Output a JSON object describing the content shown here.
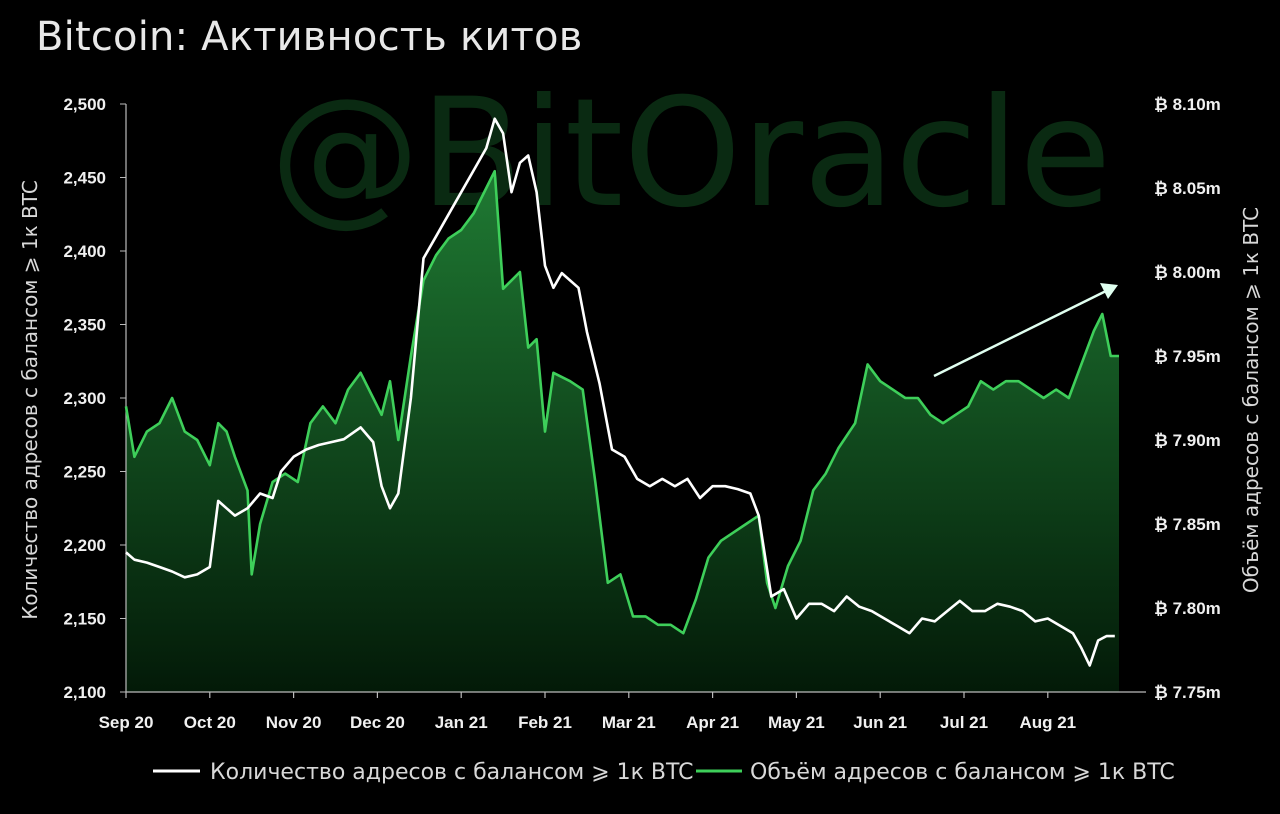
{
  "chart_data": {
    "type": "line",
    "title": "Bitcoin: Активность китов",
    "watermark": "@BitOracle",
    "x": [
      "Sep 20",
      "Oct 20",
      "Nov 20",
      "Dec 20",
      "Jan 21",
      "Feb 21",
      "Mar 21",
      "Apr 21",
      "May 21",
      "Jun 21",
      "Jul 21",
      "Aug 21"
    ],
    "left_axis": {
      "label": "Количество адресов с балансом ⩾ 1к BTC",
      "ticks": [
        "2,500",
        "2,450",
        "2,400",
        "2,350",
        "2,300",
        "2,250",
        "2,200",
        "2,150",
        "2,100"
      ],
      "ylim": [
        2100,
        2500
      ]
    },
    "right_axis": {
      "label": "Объём адресов с балансом ⩾ 1к BTC",
      "ticks": [
        "₿ 8.10m",
        "₿ 8.05m",
        "₿ 8.00m",
        "₿ 7.95m",
        "₿ 7.90m",
        "₿ 7.85m",
        "₿ 7.80m",
        "₿ 7.75m"
      ],
      "ylim": [
        7.75,
        8.1
      ]
    },
    "series": [
      {
        "name": "Количество адресов с балансом ⩾ 1к BTC",
        "axis": "left",
        "color": "#ffffff",
        "points": [
          [
            0,
            2195
          ],
          [
            0.1,
            2190
          ],
          [
            0.25,
            2188
          ],
          [
            0.4,
            2185
          ],
          [
            0.55,
            2182
          ],
          [
            0.7,
            2178
          ],
          [
            0.85,
            2180
          ],
          [
            1.0,
            2185
          ],
          [
            1.1,
            2230
          ],
          [
            1.2,
            2225
          ],
          [
            1.3,
            2220
          ],
          [
            1.45,
            2225
          ],
          [
            1.6,
            2235
          ],
          [
            1.75,
            2232
          ],
          [
            1.85,
            2250
          ],
          [
            2.0,
            2260
          ],
          [
            2.15,
            2265
          ],
          [
            2.3,
            2268
          ],
          [
            2.45,
            2270
          ],
          [
            2.6,
            2272
          ],
          [
            2.8,
            2280
          ],
          [
            2.95,
            2270
          ],
          [
            3.05,
            2240
          ],
          [
            3.15,
            2225
          ],
          [
            3.25,
            2235
          ],
          [
            3.4,
            2300
          ],
          [
            3.55,
            2395
          ],
          [
            3.7,
            2410
          ],
          [
            3.85,
            2425
          ],
          [
            4.0,
            2440
          ],
          [
            4.15,
            2455
          ],
          [
            4.3,
            2470
          ],
          [
            4.4,
            2490
          ],
          [
            4.5,
            2480
          ],
          [
            4.6,
            2440
          ],
          [
            4.7,
            2460
          ],
          [
            4.8,
            2465
          ],
          [
            4.9,
            2440
          ],
          [
            5.0,
            2390
          ],
          [
            5.1,
            2375
          ],
          [
            5.2,
            2385
          ],
          [
            5.4,
            2375
          ],
          [
            5.5,
            2345
          ],
          [
            5.65,
            2310
          ],
          [
            5.8,
            2265
          ],
          [
            5.95,
            2260
          ],
          [
            6.1,
            2245
          ],
          [
            6.25,
            2240
          ],
          [
            6.4,
            2245
          ],
          [
            6.55,
            2240
          ],
          [
            6.7,
            2245
          ],
          [
            6.85,
            2232
          ],
          [
            7.0,
            2240
          ],
          [
            7.15,
            2240
          ],
          [
            7.3,
            2238
          ],
          [
            7.45,
            2235
          ],
          [
            7.55,
            2220
          ],
          [
            7.7,
            2165
          ],
          [
            7.85,
            2170
          ],
          [
            8.0,
            2150
          ],
          [
            8.15,
            2160
          ],
          [
            8.3,
            2160
          ],
          [
            8.45,
            2155
          ],
          [
            8.6,
            2165
          ],
          [
            8.75,
            2158
          ],
          [
            8.9,
            2155
          ],
          [
            9.05,
            2150
          ],
          [
            9.2,
            2145
          ],
          [
            9.35,
            2140
          ],
          [
            9.5,
            2150
          ],
          [
            9.65,
            2148
          ],
          [
            9.8,
            2155
          ],
          [
            9.95,
            2162
          ],
          [
            10.1,
            2155
          ],
          [
            10.25,
            2155
          ],
          [
            10.4,
            2160
          ],
          [
            10.55,
            2158
          ],
          [
            10.7,
            2155
          ],
          [
            10.85,
            2148
          ],
          [
            11.0,
            2150
          ],
          [
            11.15,
            2145
          ],
          [
            11.3,
            2140
          ],
          [
            11.4,
            2130
          ],
          [
            11.5,
            2118
          ],
          [
            11.6,
            2135
          ],
          [
            11.7,
            2138
          ],
          [
            11.8,
            2138
          ]
        ]
      },
      {
        "name": "Объём адресов с балансом ⩾ 1к BTC",
        "axis": "right",
        "color": "#3ecf5a",
        "points": [
          [
            0,
            7.92
          ],
          [
            0.1,
            7.89
          ],
          [
            0.25,
            7.905
          ],
          [
            0.4,
            7.91
          ],
          [
            0.55,
            7.925
          ],
          [
            0.7,
            7.905
          ],
          [
            0.85,
            7.9
          ],
          [
            1.0,
            7.885
          ],
          [
            1.1,
            7.91
          ],
          [
            1.2,
            7.905
          ],
          [
            1.3,
            7.89
          ],
          [
            1.45,
            7.87
          ],
          [
            1.5,
            7.82
          ],
          [
            1.6,
            7.85
          ],
          [
            1.75,
            7.875
          ],
          [
            1.9,
            7.88
          ],
          [
            2.05,
            7.875
          ],
          [
            2.2,
            7.91
          ],
          [
            2.35,
            7.92
          ],
          [
            2.5,
            7.91
          ],
          [
            2.65,
            7.93
          ],
          [
            2.8,
            7.94
          ],
          [
            2.95,
            7.925
          ],
          [
            3.05,
            7.915
          ],
          [
            3.15,
            7.935
          ],
          [
            3.25,
            7.9
          ],
          [
            3.4,
            7.95
          ],
          [
            3.55,
            7.995
          ],
          [
            3.7,
            8.01
          ],
          [
            3.85,
            8.02
          ],
          [
            4.0,
            8.025
          ],
          [
            4.15,
            8.035
          ],
          [
            4.3,
            8.05
          ],
          [
            4.4,
            8.06
          ],
          [
            4.5,
            7.99
          ],
          [
            4.6,
            7.995
          ],
          [
            4.7,
            8.0
          ],
          [
            4.8,
            7.955
          ],
          [
            4.9,
            7.96
          ],
          [
            5.0,
            7.905
          ],
          [
            5.1,
            7.94
          ],
          [
            5.3,
            7.935
          ],
          [
            5.45,
            7.93
          ],
          [
            5.6,
            7.875
          ],
          [
            5.75,
            7.815
          ],
          [
            5.9,
            7.82
          ],
          [
            6.05,
            7.795
          ],
          [
            6.2,
            7.795
          ],
          [
            6.35,
            7.79
          ],
          [
            6.5,
            7.79
          ],
          [
            6.65,
            7.785
          ],
          [
            6.8,
            7.805
          ],
          [
            6.95,
            7.83
          ],
          [
            7.1,
            7.84
          ],
          [
            7.25,
            7.845
          ],
          [
            7.4,
            7.85
          ],
          [
            7.55,
            7.855
          ],
          [
            7.65,
            7.815
          ],
          [
            7.75,
            7.8
          ],
          [
            7.9,
            7.825
          ],
          [
            8.05,
            7.84
          ],
          [
            8.2,
            7.87
          ],
          [
            8.35,
            7.88
          ],
          [
            8.5,
            7.895
          ],
          [
            8.7,
            7.91
          ],
          [
            8.85,
            7.945
          ],
          [
            9.0,
            7.935
          ],
          [
            9.15,
            7.93
          ],
          [
            9.3,
            7.925
          ],
          [
            9.45,
            7.925
          ],
          [
            9.6,
            7.915
          ],
          [
            9.75,
            7.91
          ],
          [
            9.9,
            7.915
          ],
          [
            10.05,
            7.92
          ],
          [
            10.2,
            7.935
          ],
          [
            10.35,
            7.93
          ],
          [
            10.5,
            7.935
          ],
          [
            10.65,
            7.935
          ],
          [
            10.8,
            7.93
          ],
          [
            10.95,
            7.925
          ],
          [
            11.1,
            7.93
          ],
          [
            11.25,
            7.925
          ],
          [
            11.4,
            7.945
          ],
          [
            11.55,
            7.965
          ],
          [
            11.65,
            7.975
          ],
          [
            11.75,
            7.95
          ],
          [
            11.85,
            7.95
          ]
        ]
      }
    ],
    "annotation": "arrow-up-trend"
  }
}
